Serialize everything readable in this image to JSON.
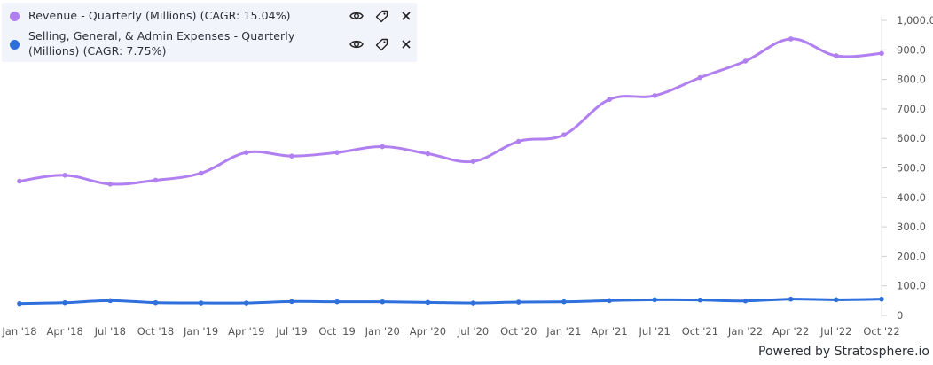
{
  "legend": {
    "items": [
      {
        "label": "Revenue - Quarterly (Millions) (CAGR: 15.04%)",
        "color": "#b07ff0"
      },
      {
        "label": "Selling, General, & Admin Expenses - Quarterly (Millions) (CAGR: 7.75%)",
        "color": "#2f6fdc"
      }
    ],
    "actions": [
      "eye-icon",
      "tag-icon",
      "close-icon"
    ]
  },
  "footer": {
    "powered_by": "Powered by Stratosphere.io"
  },
  "chart_data": {
    "type": "line",
    "x": [
      "Jan '18",
      "Apr '18",
      "Jul '18",
      "Oct '18",
      "Jan '19",
      "Apr '19",
      "Jul '19",
      "Oct '19",
      "Jan '20",
      "Apr '20",
      "Jul '20",
      "Oct '20",
      "Jan '21",
      "Apr '21",
      "Jul '21",
      "Oct '21",
      "Jan '22",
      "Apr '22",
      "Jul '22",
      "Oct '22"
    ],
    "ylim": [
      0,
      1000
    ],
    "yticks": [
      "1,000.0",
      "900.0",
      "800.0",
      "700.0",
      "600.0",
      "500.0",
      "400.0",
      "300.0",
      "200.0",
      "100.0",
      "0"
    ],
    "ytick_values": [
      1000,
      900,
      800,
      700,
      600,
      500,
      400,
      300,
      200,
      100,
      0
    ],
    "grid": false,
    "legend_position": "top-left",
    "series": [
      {
        "name": "Revenue - Quarterly (Millions) (CAGR: 15.04%)",
        "color": "#b07ff0",
        "values": [
          455,
          475,
          445,
          458,
          482,
          552,
          540,
          552,
          572,
          548,
          522,
          590,
          612,
          732,
          745,
          806,
          862,
          937,
          880,
          888
        ]
      },
      {
        "name": "Selling, General, & Admin Expenses - Quarterly (Millions) (CAGR: 7.75%)",
        "color": "#2f6fdc",
        "values": [
          40,
          43,
          50,
          43,
          42,
          42,
          47,
          46,
          46,
          44,
          42,
          45,
          46,
          50,
          53,
          52,
          49,
          55,
          53,
          55
        ]
      }
    ]
  }
}
